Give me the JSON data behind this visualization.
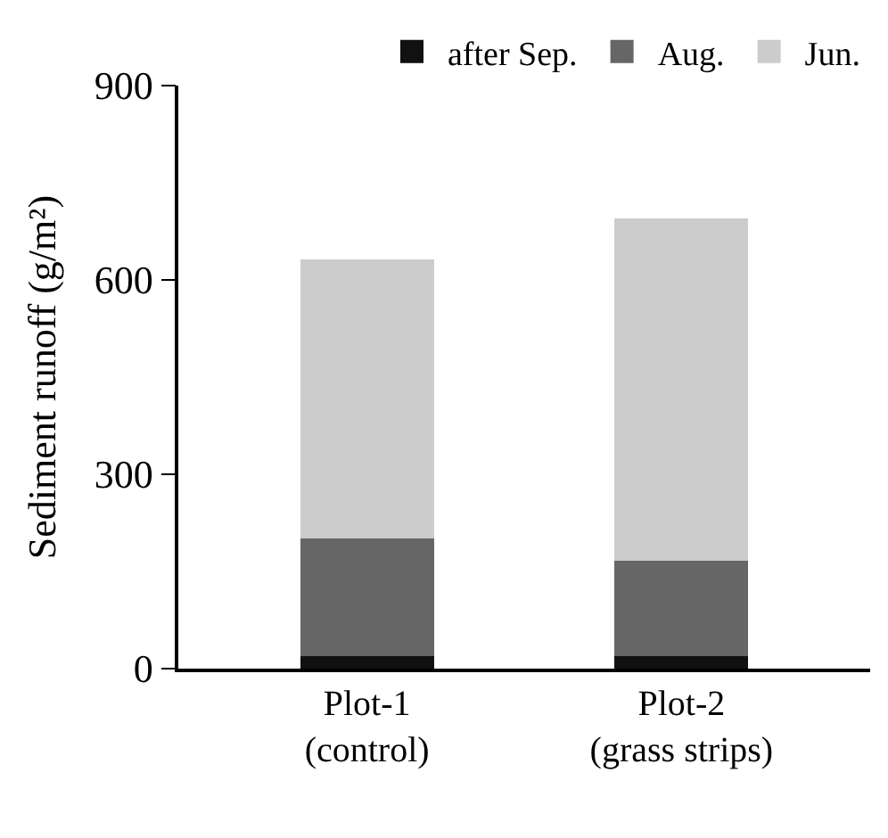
{
  "chart_data": {
    "type": "bar",
    "stacked": true,
    "ylabel": "Sediment runoff (g/m²)",
    "categories": [
      "Plot-1\n(control)",
      "Plot-2\n(grass strips)"
    ],
    "series": [
      {
        "name": "after Sep.",
        "color": "#111111",
        "values": [
          20,
          20
        ]
      },
      {
        "name": "Aug.",
        "color": "#666666",
        "values": [
          182,
          148
        ]
      },
      {
        "name": "Jun.",
        "color": "#cccccc",
        "values": [
          428,
          525
        ]
      }
    ],
    "ylim": [
      0,
      900
    ],
    "yticks": [
      0,
      300,
      600,
      900
    ],
    "legend": "top right"
  }
}
